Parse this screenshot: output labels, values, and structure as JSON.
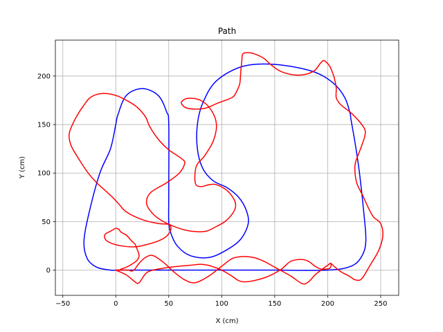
{
  "chart_data": {
    "type": "line",
    "title": "Path",
    "xlabel": "X (cm)",
    "ylabel": "Y (cm)",
    "xlim": [
      -57,
      267
    ],
    "ylim": [
      -26,
      237
    ],
    "xticks": [
      -50,
      0,
      50,
      100,
      150,
      200,
      250
    ],
    "yticks": [
      0,
      50,
      100,
      150,
      200
    ],
    "grid": true,
    "legend": "none",
    "series": [
      {
        "color": "#0000ff",
        "x": [
          0,
          50,
          100,
          150,
          200,
          222,
          232,
          236,
          234,
          230,
          226,
          222,
          221,
          216,
          205,
          185,
          150,
          120,
          95,
          82,
          77,
          77,
          82,
          92,
          105,
          116,
          123,
          125,
          118,
          105,
          88,
          70,
          58,
          52,
          50,
          50,
          50,
          48,
          40,
          25,
          10,
          2,
          0,
          -5,
          -15,
          -25,
          -30,
          -27,
          -18,
          -5,
          0
        ],
        "y": [
          0,
          0,
          0,
          0,
          0,
          4,
          14,
          30,
          60,
          100,
          130,
          155,
          162,
          178,
          193,
          205,
          212,
          210,
          195,
          172,
          150,
          125,
          105,
          92,
          85,
          75,
          62,
          48,
          32,
          21,
          13,
          15,
          25,
          38,
          50,
          80,
          150,
          163,
          180,
          187,
          180,
          160,
          150,
          125,
          100,
          60,
          30,
          12,
          3,
          0,
          0
        ]
      },
      {
        "color": "#ff0000",
        "x": [
          0,
          10,
          18,
          22,
          30,
          45,
          60,
          70,
          80,
          87,
          93,
          100,
          108,
          120,
          140,
          155,
          165,
          175,
          182,
          188,
          194,
          202,
          203,
          200,
          195,
          188,
          182,
          176,
          165,
          150,
          140,
          130,
          120,
          110,
          100,
          88,
          75,
          65,
          55,
          45,
          35,
          28,
          22,
          18,
          15,
          12,
          8,
          3,
          0
        ],
        "y": [
          0,
          -5,
          -12,
          -13,
          -2,
          2,
          4,
          5,
          6,
          5,
          3,
          0,
          -5,
          -12,
          -8,
          0,
          9,
          11,
          9,
          4,
          1,
          2,
          7,
          5,
          1,
          -5,
          -12,
          -14,
          -6,
          3,
          9,
          13,
          14,
          12,
          4,
          -6,
          -13,
          -10,
          -2,
          8,
          15,
          13,
          7,
          1,
          -1,
          0,
          0,
          0,
          0
        ]
      },
      {
        "color": "#ff0000",
        "x": [
          203,
          207,
          213,
          220,
          226,
          232,
          240,
          248,
          252,
          250,
          243,
          238,
          233,
          228,
          226,
          226,
          231,
          235,
          235,
          230,
          222,
          215,
          211,
          208,
          208,
          206,
          204,
          202,
          199,
          196,
          193,
          188,
          180,
          170,
          160,
          152,
          145,
          140,
          133,
          126,
          120,
          119,
          118,
          117,
          114,
          112,
          110,
          106,
          96,
          85,
          73,
          65,
          62,
          68,
          80,
          90,
          95,
          92,
          84,
          76,
          75,
          80,
          88,
          95,
          105,
          112,
          113,
          110,
          103,
          95,
          85,
          72,
          60,
          45,
          35,
          29,
          33,
          48,
          60,
          65,
          62,
          50,
          40,
          32,
          28,
          20,
          10,
          0,
          -10,
          -18,
          -25,
          -30,
          -35,
          -40,
          -44,
          -42,
          -34,
          -26,
          -18,
          -10,
          -3,
          3,
          10,
          25,
          40,
          50,
          52,
          48,
          40,
          28,
          18,
          5,
          -5,
          -10,
          -10,
          -5,
          0,
          3,
          5,
          10,
          15,
          18,
          20,
          22,
          20,
          15,
          10,
          5,
          3,
          0
        ],
        "y": [
          7,
          3,
          -2,
          -6,
          -10,
          -9,
          5,
          20,
          35,
          48,
          55,
          65,
          77,
          88,
          98,
          110,
          125,
          138,
          145,
          153,
          162,
          168,
          172,
          178,
          188,
          199,
          205,
          210,
          214,
          216,
          213,
          206,
          202,
          201,
          203,
          207,
          213,
          218,
          222,
          224,
          223,
          216,
          205,
          192,
          184,
          180,
          178,
          176,
          172,
          167,
          166,
          168,
          173,
          177,
          175,
          165,
          150,
          133,
          118,
          107,
          90,
          86,
          88,
          88,
          82,
          72,
          65,
          58,
          50,
          45,
          40,
          40,
          43,
          50,
          58,
          69,
          80,
          90,
          100,
          110,
          115,
          124,
          135,
          148,
          158,
          168,
          175,
          180,
          182,
          181,
          177,
          170,
          162,
          152,
          140,
          128,
          113,
          100,
          90,
          82,
          75,
          68,
          60,
          52,
          48,
          47,
          42,
          35,
          30,
          26,
          24,
          25,
          28,
          32,
          37,
          40,
          43,
          42,
          39,
          36,
          30,
          27,
          22,
          15,
          10,
          6,
          3,
          1,
          0,
          0
        ]
      }
    ]
  }
}
